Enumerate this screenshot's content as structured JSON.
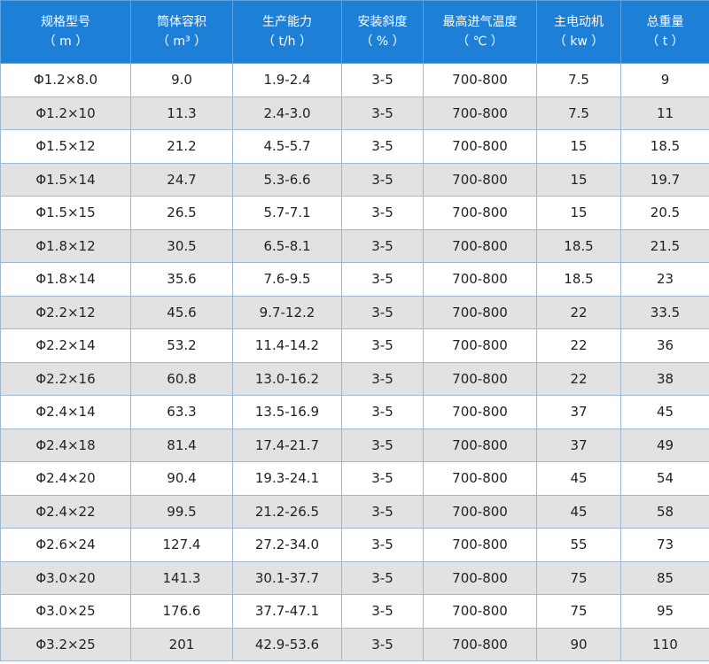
{
  "table": {
    "header": [
      {
        "name": "规格型号",
        "unit": "（ m ）"
      },
      {
        "name": "筒体容积",
        "unit": "（ m³ ）"
      },
      {
        "name": "生产能力",
        "unit": "（ t/h ）"
      },
      {
        "name": "安装斜度",
        "unit": "（ % ）"
      },
      {
        "name": "最高进气温度",
        "unit": "（ ℃ ）"
      },
      {
        "name": "主电动机",
        "unit": "（ kw ）"
      },
      {
        "name": "总重量",
        "unit": "（ t ）"
      }
    ],
    "rows": [
      [
        "Φ1.2×8.0",
        "9.0",
        "1.9-2.4",
        "3-5",
        "700-800",
        "7.5",
        "9"
      ],
      [
        "Φ1.2×10",
        "11.3",
        "2.4-3.0",
        "3-5",
        "700-800",
        "7.5",
        "11"
      ],
      [
        "Φ1.5×12",
        "21.2",
        "4.5-5.7",
        "3-5",
        "700-800",
        "15",
        "18.5"
      ],
      [
        "Φ1.5×14",
        "24.7",
        "5.3-6.6",
        "3-5",
        "700-800",
        "15",
        "19.7"
      ],
      [
        "Φ1.5×15",
        "26.5",
        "5.7-7.1",
        "3-5",
        "700-800",
        "15",
        "20.5"
      ],
      [
        "Φ1.8×12",
        "30.5",
        "6.5-8.1",
        "3-5",
        "700-800",
        "18.5",
        "21.5"
      ],
      [
        "Φ1.8×14",
        "35.6",
        "7.6-9.5",
        "3-5",
        "700-800",
        "18.5",
        "23"
      ],
      [
        "Φ2.2×12",
        "45.6",
        "9.7-12.2",
        "3-5",
        "700-800",
        "22",
        "33.5"
      ],
      [
        "Φ2.2×14",
        "53.2",
        "11.4-14.2",
        "3-5",
        "700-800",
        "22",
        "36"
      ],
      [
        "Φ2.2×16",
        "60.8",
        "13.0-16.2",
        "3-5",
        "700-800",
        "22",
        "38"
      ],
      [
        "Φ2.4×14",
        "63.3",
        "13.5-16.9",
        "3-5",
        "700-800",
        "37",
        "45"
      ],
      [
        "Φ2.4×18",
        "81.4",
        "17.4-21.7",
        "3-5",
        "700-800",
        "37",
        "49"
      ],
      [
        "Φ2.4×20",
        "90.4",
        "19.3-24.1",
        "3-5",
        "700-800",
        "45",
        "54"
      ],
      [
        "Φ2.4×22",
        "99.5",
        "21.2-26.5",
        "3-5",
        "700-800",
        "45",
        "58"
      ],
      [
        "Φ2.6×24",
        "127.4",
        "27.2-34.0",
        "3-5",
        "700-800",
        "55",
        "73"
      ],
      [
        "Φ3.0×20",
        "141.3",
        "30.1-37.7",
        "3-5",
        "700-800",
        "75",
        "85"
      ],
      [
        "Φ3.0×25",
        "176.6",
        "37.7-47.1",
        "3-5",
        "700-800",
        "75",
        "95"
      ],
      [
        "Φ3.2×25",
        "201",
        "42.9-53.6",
        "3-5",
        "700-800",
        "90",
        "110"
      ]
    ]
  }
}
